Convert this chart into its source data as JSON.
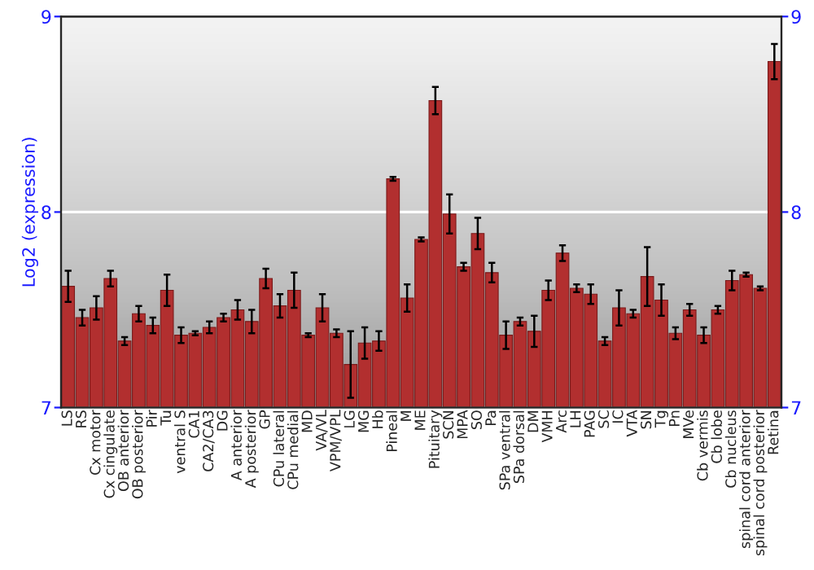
{
  "chart_data": {
    "type": "bar",
    "ylabel": "Log2 (expression)",
    "categories": [
      "LS",
      "RS",
      "Cx motor",
      "Cx cingulate",
      "OB anterior",
      "OB posterior",
      "Pir",
      "Tu",
      "ventral S",
      "CA1",
      "CA2/CA3",
      "DG",
      "A anterior",
      "A posterior",
      "GP",
      "CPu lateral",
      "CPu medial",
      "MD",
      "VA/VL",
      "VPM/VPL",
      "LG",
      "MG",
      "Hb",
      "Pineal",
      "M",
      "ME",
      "Pituitary",
      "SCN",
      "MPA",
      "SO",
      "Pa",
      "SPa ventral",
      "SPa dorsal",
      "DM",
      "VMH",
      "Arc",
      "LH",
      "PAG",
      "SC",
      "IC",
      "VTA",
      "SN",
      "Tg",
      "Pn",
      "MVe",
      "Cb vermis",
      "Cb lobe",
      "Cb nucleus",
      "spinal cord anterior",
      "spinal cord posterior",
      "Retina"
    ],
    "values": [
      7.62,
      7.46,
      7.51,
      7.66,
      7.34,
      7.48,
      7.42,
      7.6,
      7.37,
      7.38,
      7.41,
      7.46,
      7.5,
      7.44,
      7.66,
      7.52,
      7.6,
      7.37,
      7.51,
      7.38,
      7.22,
      7.33,
      7.34,
      8.17,
      7.56,
      7.86,
      8.57,
      7.99,
      7.72,
      7.89,
      7.69,
      7.37,
      7.44,
      7.39,
      7.6,
      7.79,
      7.61,
      7.58,
      7.34,
      7.51,
      7.48,
      7.67,
      7.55,
      7.38,
      7.5,
      7.37,
      7.5,
      7.65,
      7.68,
      7.61,
      8.77
    ],
    "errors": [
      0.08,
      0.04,
      0.06,
      0.04,
      0.02,
      0.04,
      0.04,
      0.08,
      0.04,
      0.01,
      0.03,
      0.02,
      0.05,
      0.06,
      0.05,
      0.06,
      0.09,
      0.01,
      0.07,
      0.02,
      0.17,
      0.08,
      0.05,
      0.01,
      0.07,
      0.01,
      0.07,
      0.1,
      0.02,
      0.08,
      0.05,
      0.07,
      0.02,
      0.08,
      0.05,
      0.04,
      0.02,
      0.05,
      0.02,
      0.09,
      0.02,
      0.15,
      0.08,
      0.03,
      0.03,
      0.04,
      0.02,
      0.05,
      0.01,
      0.01,
      0.09
    ],
    "color": "#b22f2f",
    "ylim": [
      7,
      9
    ],
    "yticks": [
      7,
      8,
      9
    ],
    "y2lim": [
      7,
      9
    ],
    "y2ticks": [
      7,
      8,
      9
    ],
    "grid": "y",
    "legend": false
  }
}
